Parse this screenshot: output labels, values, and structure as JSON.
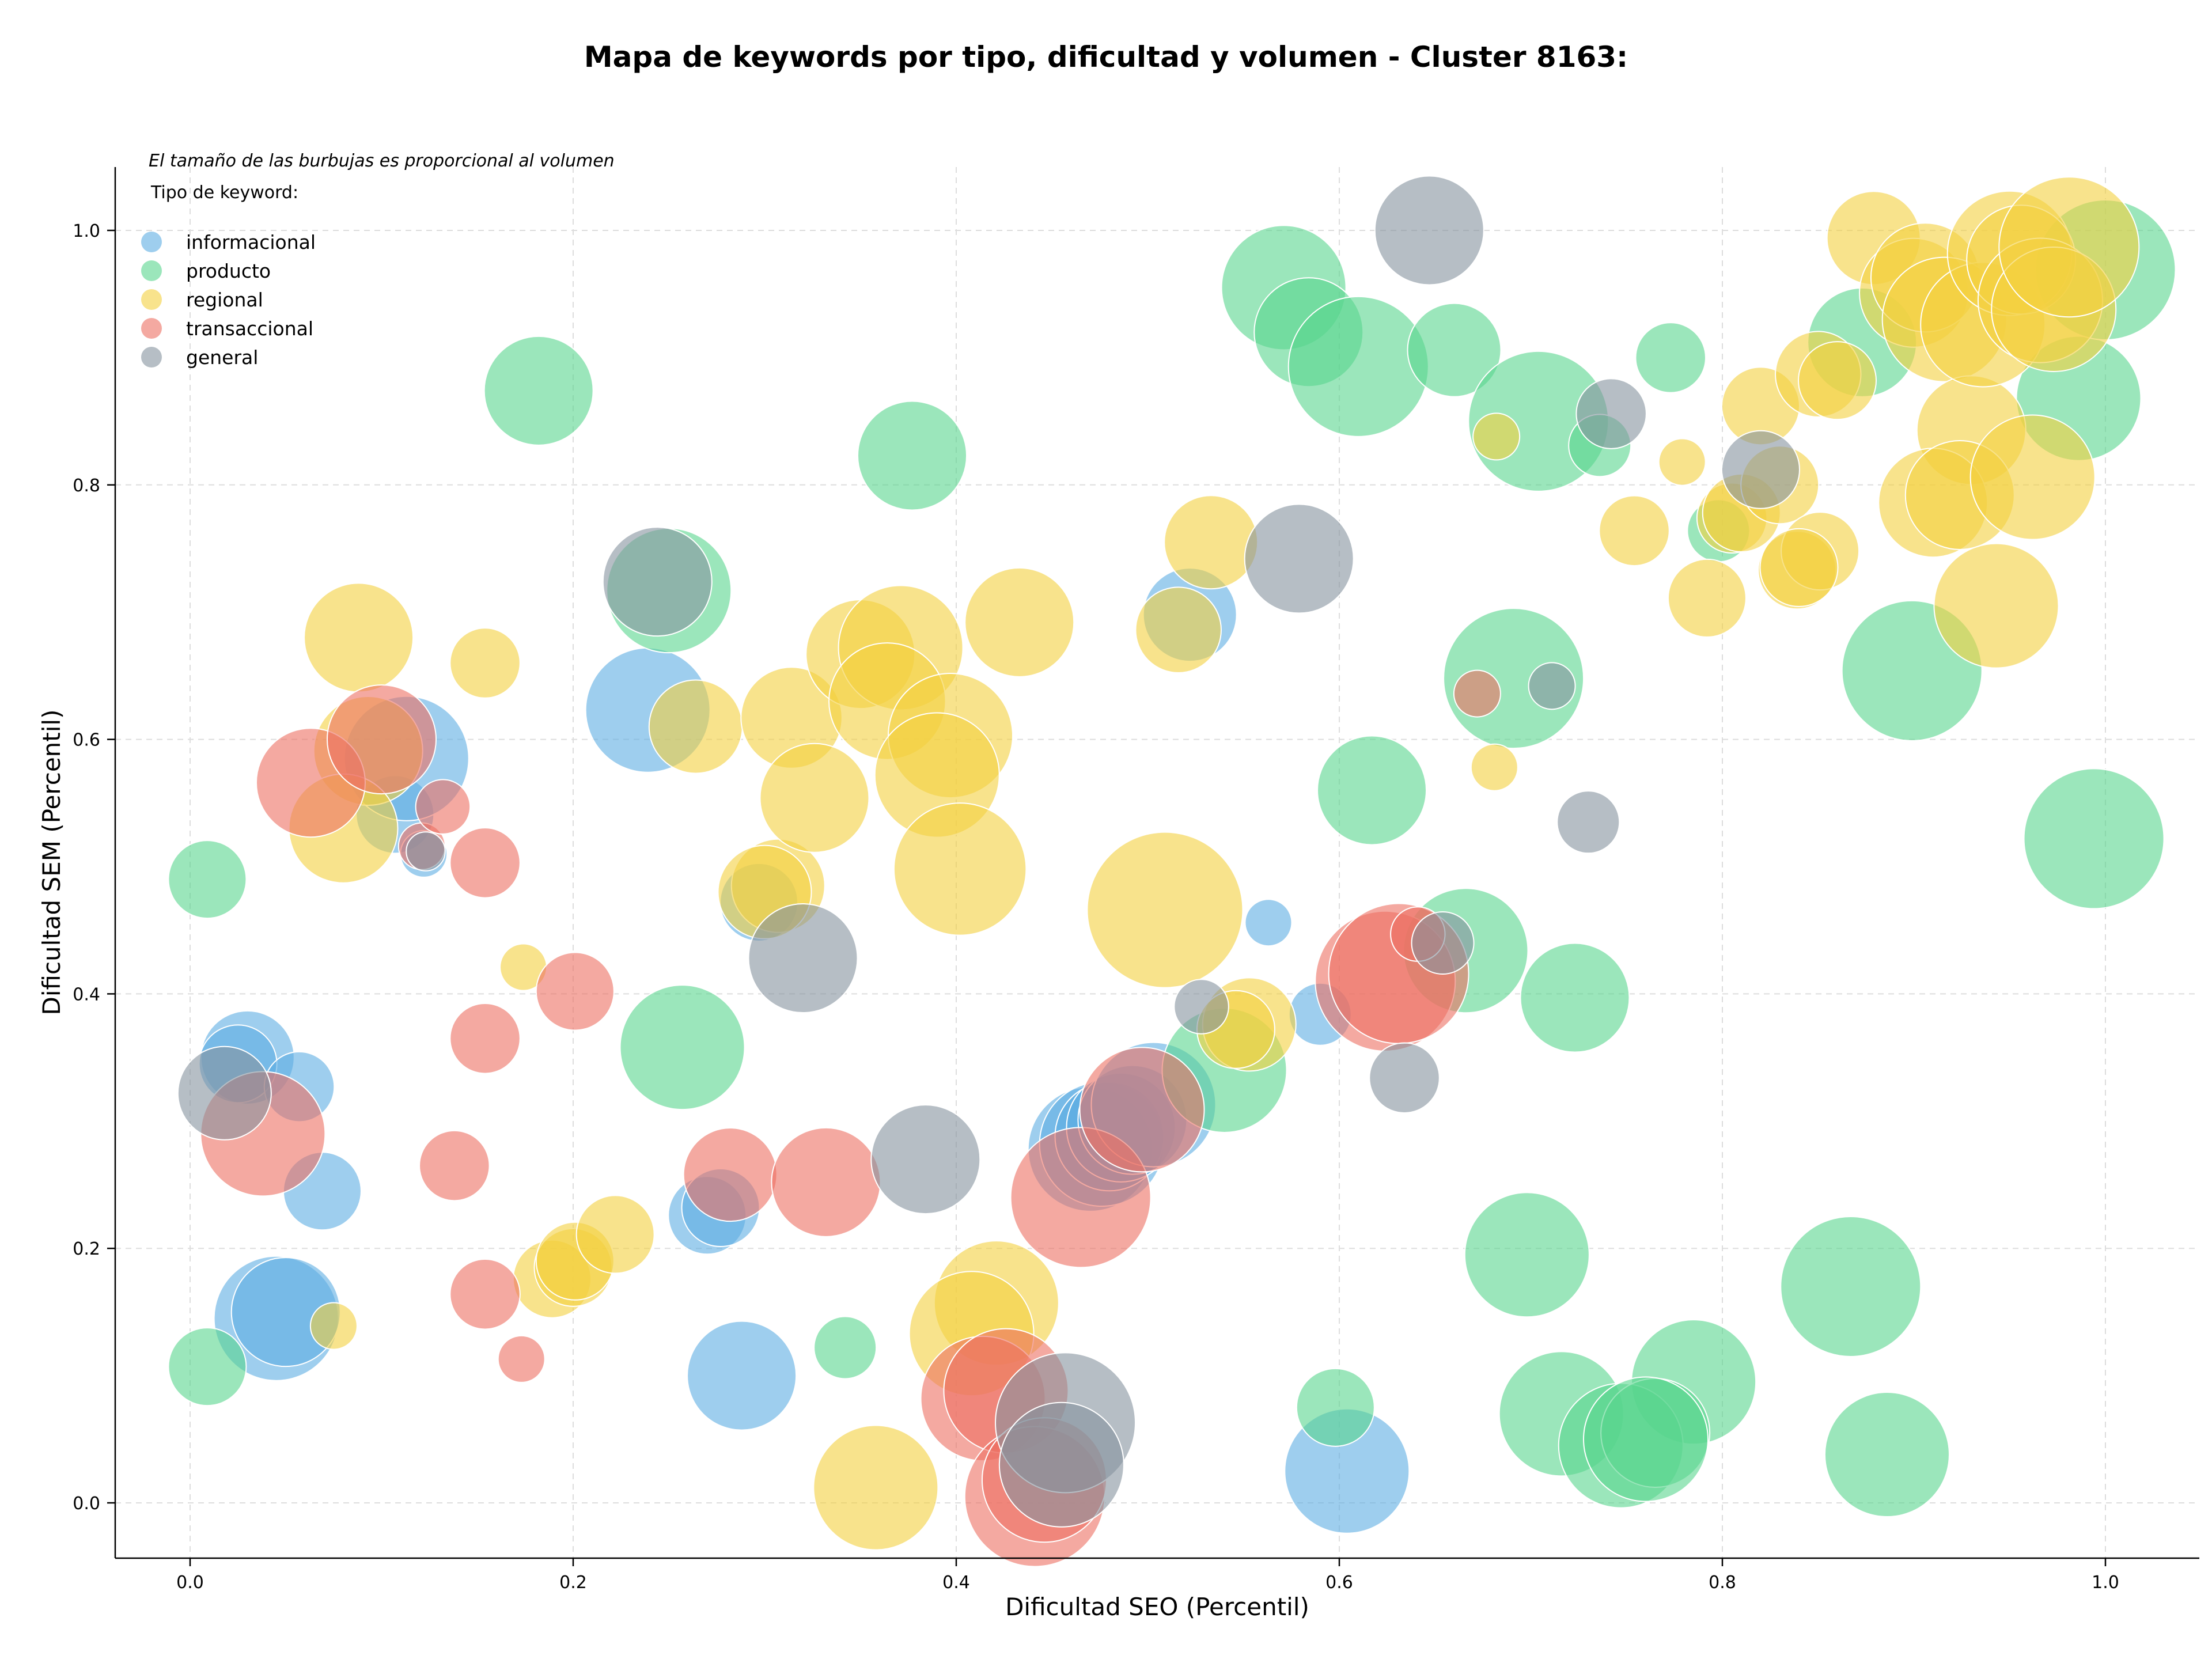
{
  "chart_data": {
    "type": "scatter",
    "title": "Mapa de keywords por tipo, dificultad y volumen - Cluster 8163:",
    "xlabel": "Dificultad SEO (Percentil)",
    "ylabel": "Dificultad SEM (Percentil)",
    "xlim": [
      -0.04,
      1.05
    ],
    "ylim": [
      -0.04,
      1.05
    ],
    "xticks": [
      "0.0",
      "0.2",
      "0.4",
      "0.6",
      "0.8",
      "1.0"
    ],
    "yticks": [
      "0.0",
      "0.2",
      "0.4",
      "0.6",
      "0.8",
      "1.0"
    ],
    "grid": true,
    "size_note": "El tamaño de las burbujas es proporcional al volumen",
    "legend_title": "Tipo de keyword:",
    "legend_position": "upper-left",
    "series": [
      {
        "name": "informacional",
        "color": "#5DADE2",
        "points": [
          [
            0.03,
            0.35,
            6
          ],
          [
            0.025,
            0.345,
            5
          ],
          [
            0.057,
            0.327,
            4.5
          ],
          [
            0.069,
            0.245,
            5
          ],
          [
            0.045,
            0.145,
            8
          ],
          [
            0.05,
            0.15,
            7
          ],
          [
            0.107,
            0.541,
            5
          ],
          [
            0.113,
            0.585,
            8
          ],
          [
            0.122,
            0.51,
            3
          ],
          [
            0.239,
            0.623,
            8
          ],
          [
            0.27,
            0.226,
            5
          ],
          [
            0.277,
            0.232,
            5
          ],
          [
            0.288,
            0.1,
            7
          ],
          [
            0.297,
            0.472,
            5
          ],
          [
            0.522,
            0.698,
            6
          ],
          [
            0.563,
            0.456,
            3
          ],
          [
            0.59,
            0.384,
            4
          ],
          [
            0.604,
            0.025,
            8
          ],
          [
            0.47,
            0.278,
            8
          ],
          [
            0.476,
            0.282,
            8
          ],
          [
            0.48,
            0.288,
            7
          ],
          [
            0.486,
            0.295,
            7
          ],
          [
            0.492,
            0.301,
            7
          ],
          [
            0.503,
            0.313,
            8
          ]
        ]
      },
      {
        "name": "producto",
        "color": "#58D68D",
        "points": [
          [
            0.009,
            0.49,
            5
          ],
          [
            0.009,
            0.107,
            5
          ],
          [
            0.182,
            0.874,
            7
          ],
          [
            0.25,
            0.717,
            8
          ],
          [
            0.257,
            0.358,
            8
          ],
          [
            0.342,
            0.122,
            4
          ],
          [
            0.377,
            0.823,
            7
          ],
          [
            0.571,
            0.955,
            8
          ],
          [
            0.584,
            0.92,
            7
          ],
          [
            0.61,
            0.893,
            9
          ],
          [
            0.66,
            0.906,
            6
          ],
          [
            0.704,
            0.85,
            9
          ],
          [
            0.736,
            0.831,
            4
          ],
          [
            0.773,
            0.9,
            4.5
          ],
          [
            0.798,
            0.764,
            4
          ],
          [
            0.873,
            0.912,
            7
          ],
          [
            0.986,
            0.868,
            8
          ],
          [
            1.0,
            0.969,
            9
          ],
          [
            0.691,
            0.648,
            9
          ],
          [
            0.617,
            0.56,
            7
          ],
          [
            0.666,
            0.434,
            8
          ],
          [
            0.723,
            0.397,
            7
          ],
          [
            0.54,
            0.34,
            8
          ],
          [
            0.698,
            0.195,
            8
          ],
          [
            0.899,
            0.654,
            9
          ],
          [
            0.994,
            0.522,
            9
          ],
          [
            0.867,
            0.17,
            9
          ],
          [
            0.785,
            0.095,
            8
          ],
          [
            0.716,
            0.07,
            8
          ],
          [
            0.747,
            0.045,
            8
          ],
          [
            0.765,
            0.055,
            7
          ],
          [
            0.76,
            0.05,
            8
          ],
          [
            0.886,
            0.038,
            8
          ],
          [
            0.598,
            0.075,
            5
          ]
        ]
      },
      {
        "name": "regional",
        "color": "#F4D03F",
        "points": [
          [
            0.088,
            0.68,
            7
          ],
          [
            0.093,
            0.591,
            7
          ],
          [
            0.08,
            0.53,
            7
          ],
          [
            0.154,
            0.66,
            4.5
          ],
          [
            0.174,
            0.421,
            3
          ],
          [
            0.075,
            0.139,
            3
          ],
          [
            0.189,
            0.176,
            5
          ],
          [
            0.2,
            0.185,
            5
          ],
          [
            0.201,
            0.19,
            5
          ],
          [
            0.222,
            0.211,
            5
          ],
          [
            0.264,
            0.61,
            6
          ],
          [
            0.307,
            0.485,
            6
          ],
          [
            0.3,
            0.48,
            6
          ],
          [
            0.314,
            0.617,
            6.5
          ],
          [
            0.326,
            0.554,
            7
          ],
          [
            0.35,
            0.667,
            7
          ],
          [
            0.371,
            0.672,
            8
          ],
          [
            0.364,
            0.63,
            7.5
          ],
          [
            0.397,
            0.603,
            8
          ],
          [
            0.39,
            0.572,
            8
          ],
          [
            0.402,
            0.498,
            8.5
          ],
          [
            0.433,
            0.692,
            7
          ],
          [
            0.421,
            0.157,
            8
          ],
          [
            0.408,
            0.133,
            8
          ],
          [
            0.358,
            0.012,
            8
          ],
          [
            0.509,
            0.466,
            10
          ],
          [
            0.533,
            0.755,
            6
          ],
          [
            0.516,
            0.686,
            5.5
          ],
          [
            0.553,
            0.376,
            6
          ],
          [
            0.546,
            0.372,
            5
          ],
          [
            0.682,
            0.838,
            3
          ],
          [
            0.681,
            0.578,
            3
          ],
          [
            0.754,
            0.764,
            4.5
          ],
          [
            0.779,
            0.818,
            3
          ],
          [
            0.792,
            0.711,
            5
          ],
          [
            0.805,
            0.774,
            4.5
          ],
          [
            0.81,
            0.778,
            5
          ],
          [
            0.82,
            0.862,
            5
          ],
          [
            0.83,
            0.8,
            5
          ],
          [
            0.839,
            0.733,
            5
          ],
          [
            0.851,
            0.748,
            5
          ],
          [
            0.85,
            0.887,
            5.5
          ],
          [
            0.86,
            0.882,
            5
          ],
          [
            0.879,
            0.994,
            6
          ],
          [
            0.9,
            0.951,
            7
          ],
          [
            0.906,
            0.963,
            7
          ],
          [
            0.916,
            0.93,
            8
          ],
          [
            0.93,
            0.843,
            7
          ],
          [
            0.936,
            0.926,
            8
          ],
          [
            0.91,
            0.786,
            7
          ],
          [
            0.924,
            0.792,
            7
          ],
          [
            0.943,
            0.705,
            8
          ],
          [
            0.962,
            0.806,
            8
          ],
          [
            0.95,
            0.982,
            8
          ],
          [
            0.956,
            0.977,
            7
          ],
          [
            0.966,
            0.945,
            8
          ],
          [
            0.973,
            0.938,
            8
          ],
          [
            0.981,
            0.987,
            9
          ],
          [
            0.84,
            0.735,
            5
          ]
        ]
      },
      {
        "name": "transaccional",
        "color": "#EC7063",
        "points": [
          [
            0.063,
            0.566,
            7
          ],
          [
            0.1,
            0.6,
            7
          ],
          [
            0.121,
            0.516,
            3
          ],
          [
            0.132,
            0.547,
            3.5
          ],
          [
            0.154,
            0.503,
            4.5
          ],
          [
            0.154,
            0.365,
            4.5
          ],
          [
            0.138,
            0.265,
            4.5
          ],
          [
            0.038,
            0.29,
            8
          ],
          [
            0.154,
            0.164,
            4.5
          ],
          [
            0.173,
            0.113,
            3
          ],
          [
            0.201,
            0.402,
            5
          ],
          [
            0.282,
            0.258,
            6
          ],
          [
            0.332,
            0.252,
            7
          ],
          [
            0.465,
            0.24,
            9
          ],
          [
            0.414,
            0.082,
            8
          ],
          [
            0.426,
            0.088,
            8
          ],
          [
            0.441,
            0.005,
            9
          ],
          [
            0.446,
            0.018,
            8
          ],
          [
            0.497,
            0.309,
            8
          ],
          [
            0.624,
            0.41,
            9
          ],
          [
            0.631,
            0.416,
            9
          ],
          [
            0.641,
            0.447,
            3.5
          ],
          [
            0.672,
            0.636,
            3
          ]
        ]
      },
      {
        "name": "general",
        "color": "#85929E",
        "points": [
          [
            0.018,
            0.322,
            6
          ],
          [
            0.123,
            0.512,
            2.5
          ],
          [
            0.244,
            0.724,
            7
          ],
          [
            0.32,
            0.428,
            7
          ],
          [
            0.384,
            0.27,
            7
          ],
          [
            0.457,
            0.063,
            9
          ],
          [
            0.455,
            0.03,
            8
          ],
          [
            0.528,
            0.39,
            3.5
          ],
          [
            0.579,
            0.742,
            7
          ],
          [
            0.634,
            0.334,
            4.5
          ],
          [
            0.647,
            1.0,
            7
          ],
          [
            0.654,
            0.44,
            4
          ],
          [
            0.711,
            0.642,
            3
          ],
          [
            0.73,
            0.535,
            4
          ],
          [
            0.742,
            0.856,
            4.5
          ],
          [
            0.82,
            0.812,
            5
          ]
        ]
      }
    ]
  }
}
